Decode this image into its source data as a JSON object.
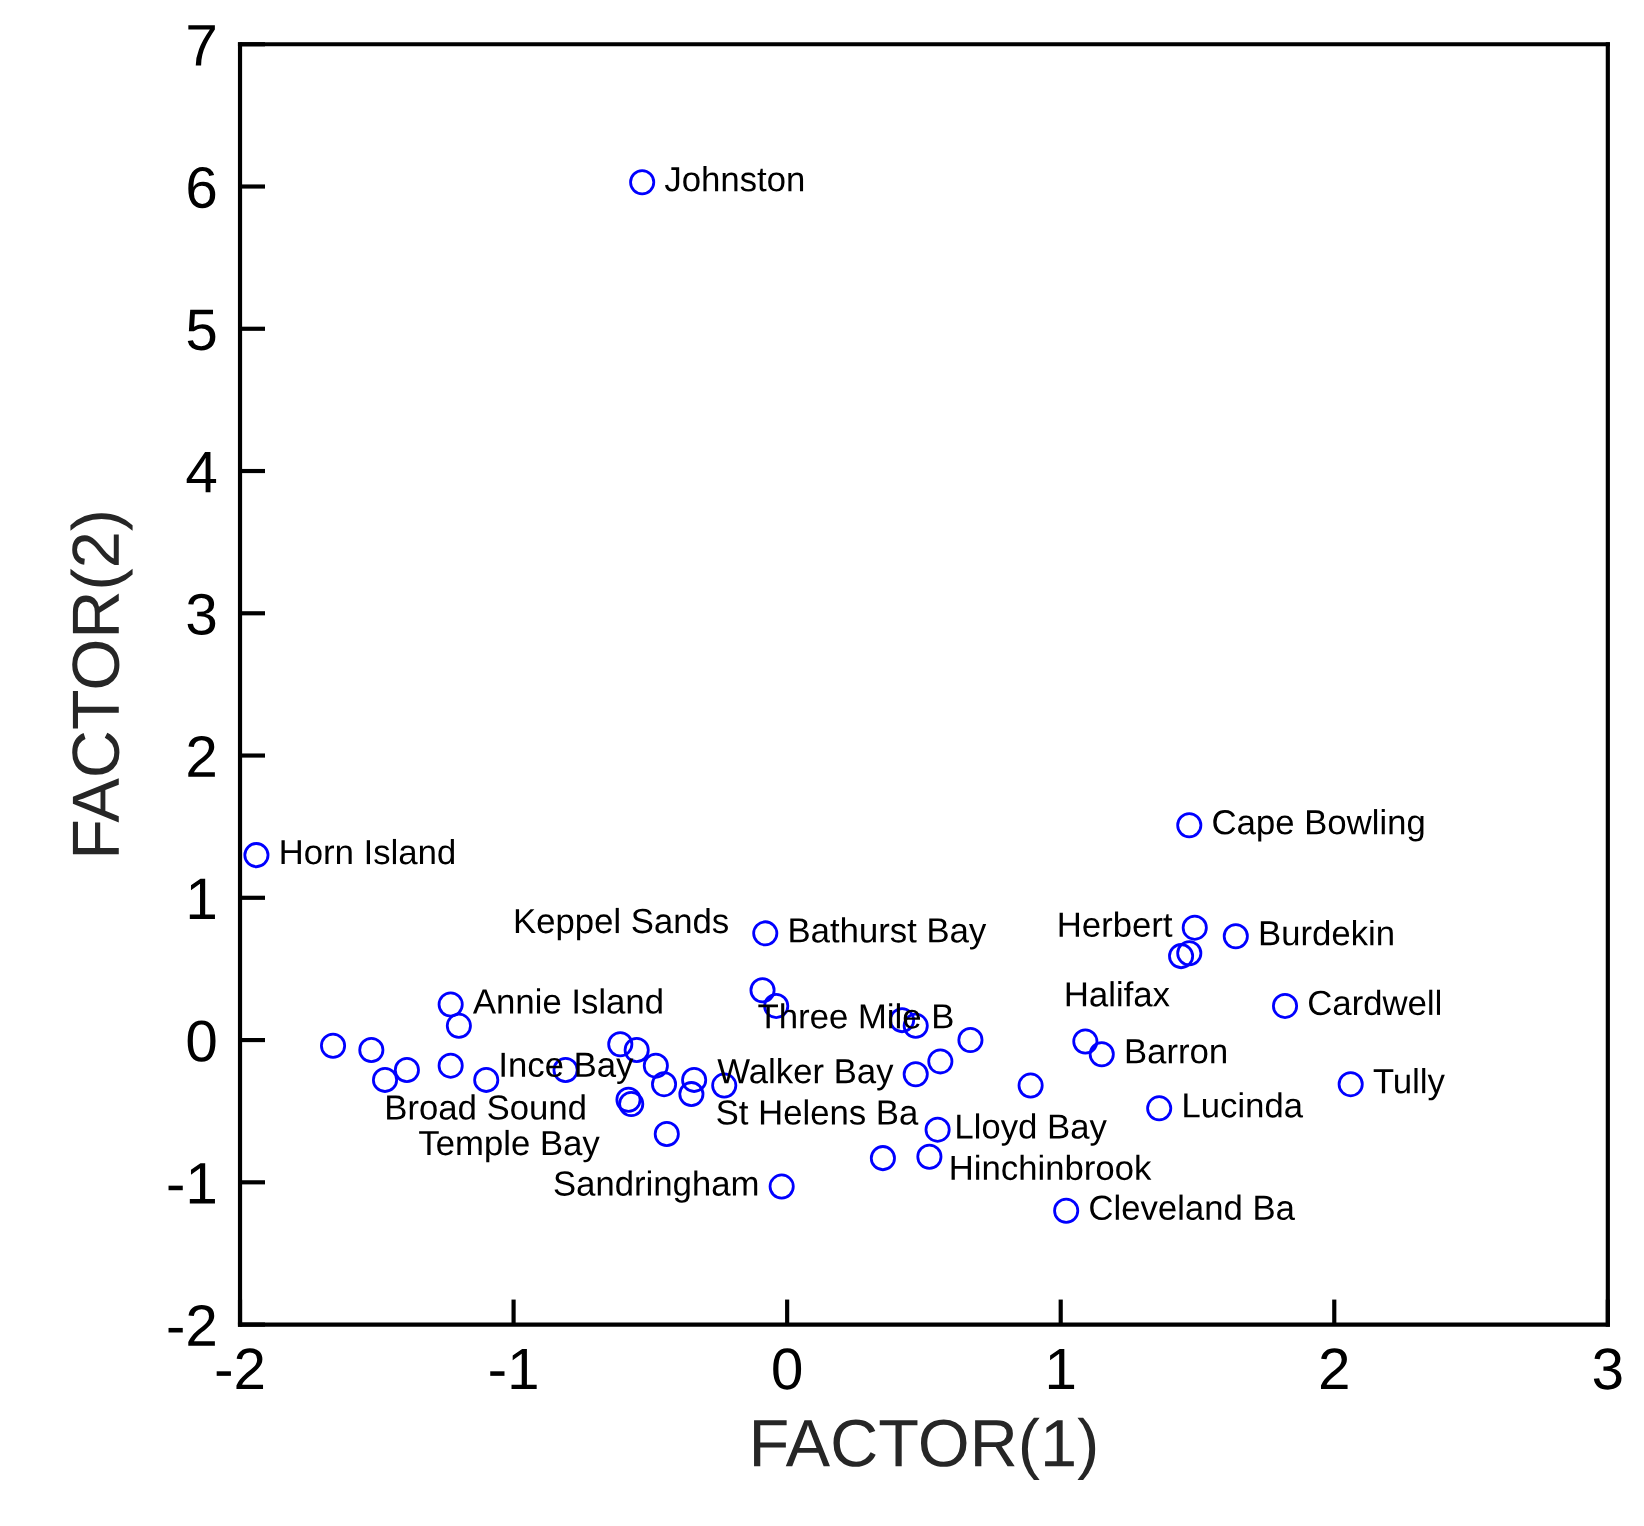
{
  "chart_data": {
    "type": "scatter",
    "xlabel": "FACTOR(1)",
    "ylabel": "FACTOR(2)",
    "xlim": [
      -2,
      3
    ],
    "ylim": [
      -2,
      7
    ],
    "xticks": [
      -2,
      -1,
      0,
      1,
      2,
      3
    ],
    "yticks": [
      -2,
      -1,
      0,
      1,
      2,
      3,
      4,
      5,
      6,
      7
    ],
    "grid": false,
    "marker": "circle",
    "series": [
      {
        "color": "#0000ff",
        "x": [
          -0.53,
          -1.94,
          1.47,
          -0.08,
          1.49,
          1.44,
          1.47,
          1.64,
          1.82,
          1.15,
          1.09,
          0.89,
          2.06,
          1.36,
          1.02,
          0.52,
          0.35,
          0.55,
          0.42,
          0.47,
          0.67,
          0.56,
          0.47,
          -0.02,
          -1.23,
          -1.2,
          -1.66,
          -1.52,
          -1.39,
          -1.47,
          -1.23,
          -1.1,
          -0.81,
          -0.61,
          -0.55,
          -0.45,
          -0.35,
          -0.57,
          -0.44,
          -0.09,
          -0.04,
          -0.48,
          -0.34,
          -0.23,
          -0.58
        ],
        "values": [
          6.03,
          1.3,
          1.51,
          0.75,
          0.79,
          0.59,
          0.61,
          0.73,
          0.24,
          -0.1,
          -0.01,
          -0.32,
          -0.31,
          -0.48,
          -1.2,
          -0.82,
          -0.83,
          -0.63,
          0.14,
          0.1,
          0.0,
          -0.15,
          -0.24,
          -1.03,
          0.25,
          0.1,
          -0.04,
          -0.07,
          -0.21,
          -0.28,
          -0.18,
          -0.28,
          -0.21,
          -0.03,
          -0.07,
          -0.31,
          -0.38,
          -0.45,
          -0.66,
          0.35,
          0.24,
          -0.18,
          -0.28,
          -0.32,
          -0.42
        ]
      }
    ],
    "annotations": [
      {
        "text": "Johnston",
        "x": -0.53,
        "y": 6.03
      },
      {
        "text": "Horn Island",
        "x": -1.94,
        "y": 1.3
      },
      {
        "text": "Cape Bowling",
        "x": 1.47,
        "y": 1.51
      },
      {
        "text": "Bathurst Bay",
        "x": -0.08,
        "y": 0.75
      },
      {
        "text": "Herbert",
        "x": 1.49,
        "y": 0.79
      },
      {
        "text": "Halifax",
        "x": 1.44,
        "y": 0.59
      },
      {
        "text": "Burdekin",
        "x": 1.64,
        "y": 0.73
      },
      {
        "text": "Cardwell",
        "x": 1.82,
        "y": 0.24
      },
      {
        "text": "Barron",
        "x": 1.15,
        "y": -0.1
      },
      {
        "text": "Lloyd Bay",
        "x": 0.89,
        "y": -0.32
      },
      {
        "text": "Tully",
        "x": 2.06,
        "y": -0.31
      },
      {
        "text": "Lucinda",
        "x": 1.36,
        "y": -0.48
      },
      {
        "text": "Cleveland Ba",
        "x": 1.02,
        "y": -1.2
      },
      {
        "text": "St Helens Ba",
        "x": 0.52,
        "y": -0.82
      },
      {
        "text": "Hinchinbrook",
        "x": 0.55,
        "y": -0.63
      },
      {
        "text": "Sandringham",
        "x": -0.02,
        "y": -1.03
      },
      {
        "text": "Annie Island",
        "x": -1.23,
        "y": 0.25
      },
      {
        "text": "Keppel Sands",
        "x": -0.09,
        "y": 0.35
      },
      {
        "text": "Walker Bay",
        "x": 0.47,
        "y": -0.24
      },
      {
        "text": "Broad Sound",
        "x": -0.61,
        "y": -0.03
      },
      {
        "text": "Ince Bay",
        "x": -0.44,
        "y": -0.66
      },
      {
        "text": "Temple Bay",
        "x": -1.47,
        "y": -0.28
      },
      {
        "text": "Three Mile B",
        "x": -0.23,
        "y": -0.32
      }
    ]
  }
}
